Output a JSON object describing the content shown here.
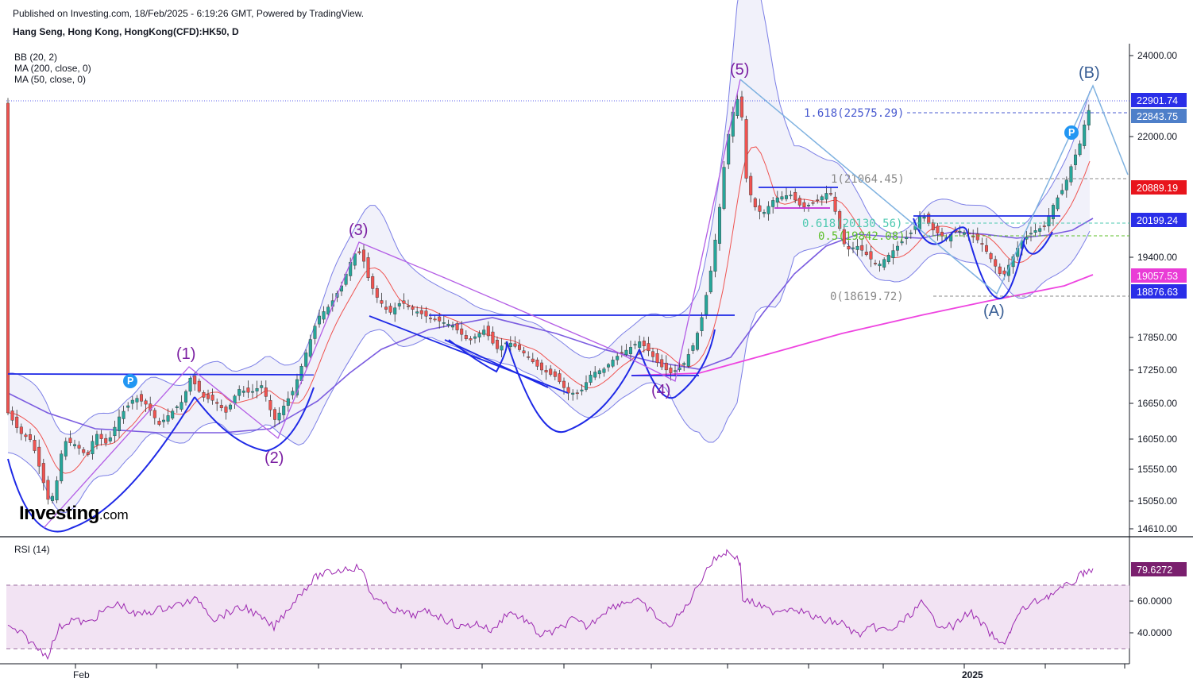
{
  "header": {
    "published": "Published on Investing.com, 18/Feb/2025 - 6:19:26 GMT, Powered by TradingView.",
    "symbol": "Hang Seng, Hong Kong, HongKong(CFD):HK50, D"
  },
  "logo": {
    "main": "Investing",
    "suffix": ".com"
  },
  "chart_data": [
    {
      "type": "candlestick",
      "indicators": [
        "BB (20, 2)",
        "MA (200, close, 0)",
        "MA (50, close, 0)"
      ],
      "y_ticks": [
        "24000.00",
        "22000.00",
        "19400.00",
        "17850.00",
        "17250.00",
        "16650.00",
        "16050.00",
        "15550.00",
        "15050.00",
        "14610.00"
      ],
      "ylim": [
        14610,
        24000
      ],
      "x_labels": [
        "Feb",
        "2025"
      ],
      "price_badges": [
        {
          "label": "22901.74",
          "value": 22901.74,
          "color": "#2a2ee8"
        },
        {
          "label": "22843.75",
          "value": 22843.75,
          "color": "#4e7fc9"
        },
        {
          "label": "20889.19",
          "value": 20889.19,
          "color": "#e8141c"
        },
        {
          "label": "20199.24",
          "value": 20199.24,
          "color": "#2a2ee8"
        },
        {
          "label": "19057.53",
          "value": 19057.53,
          "color": "#e93cd6"
        },
        {
          "label": "18876.63",
          "value": 18876.63,
          "color": "#2a2ee8"
        }
      ],
      "wave_labels": [
        {
          "label": "(1)",
          "color": "#7b1fa2"
        },
        {
          "label": "(2)",
          "color": "#7b1fa2"
        },
        {
          "label": "(3)",
          "color": "#7b1fa2"
        },
        {
          "label": "(4)",
          "color": "#7b1fa2"
        },
        {
          "label": "(5)",
          "color": "#7b1fa2"
        },
        {
          "label": "(A)",
          "color": "#3a5f95"
        },
        {
          "label": "(B)",
          "color": "#3a5f95"
        }
      ],
      "fib_levels": [
        {
          "label": "1.618(22575.29)",
          "value": 22575.29,
          "color": "#4a5bd0"
        },
        {
          "label": "1(21064.45)",
          "value": 21064.45,
          "color": "#888888"
        },
        {
          "label": "0.618(20130.56)",
          "value": 20130.56,
          "color": "#4dc9b0"
        },
        {
          "label": "0.5(19842.08)",
          "value": 19842.08,
          "color": "#5cbf2a"
        },
        {
          "label": "0(18619.72)",
          "value": 18619.72,
          "color": "#888888"
        }
      ],
      "marker_label": "P",
      "colors": {
        "up": "#26a69a",
        "down": "#ef5350",
        "bb": "#7c7fe6",
        "ma50": "#7b5ce0",
        "ma200": "#ee44e0",
        "ma20": "#ef5350"
      }
    },
    {
      "type": "line",
      "title": "RSI (14)",
      "y_ticks": [
        "60.0000",
        "40.0000"
      ],
      "band": [
        30,
        70
      ],
      "last_value": "79.6272",
      "colors": {
        "line": "#9c27b0",
        "band": "#f2e3f3"
      }
    }
  ]
}
